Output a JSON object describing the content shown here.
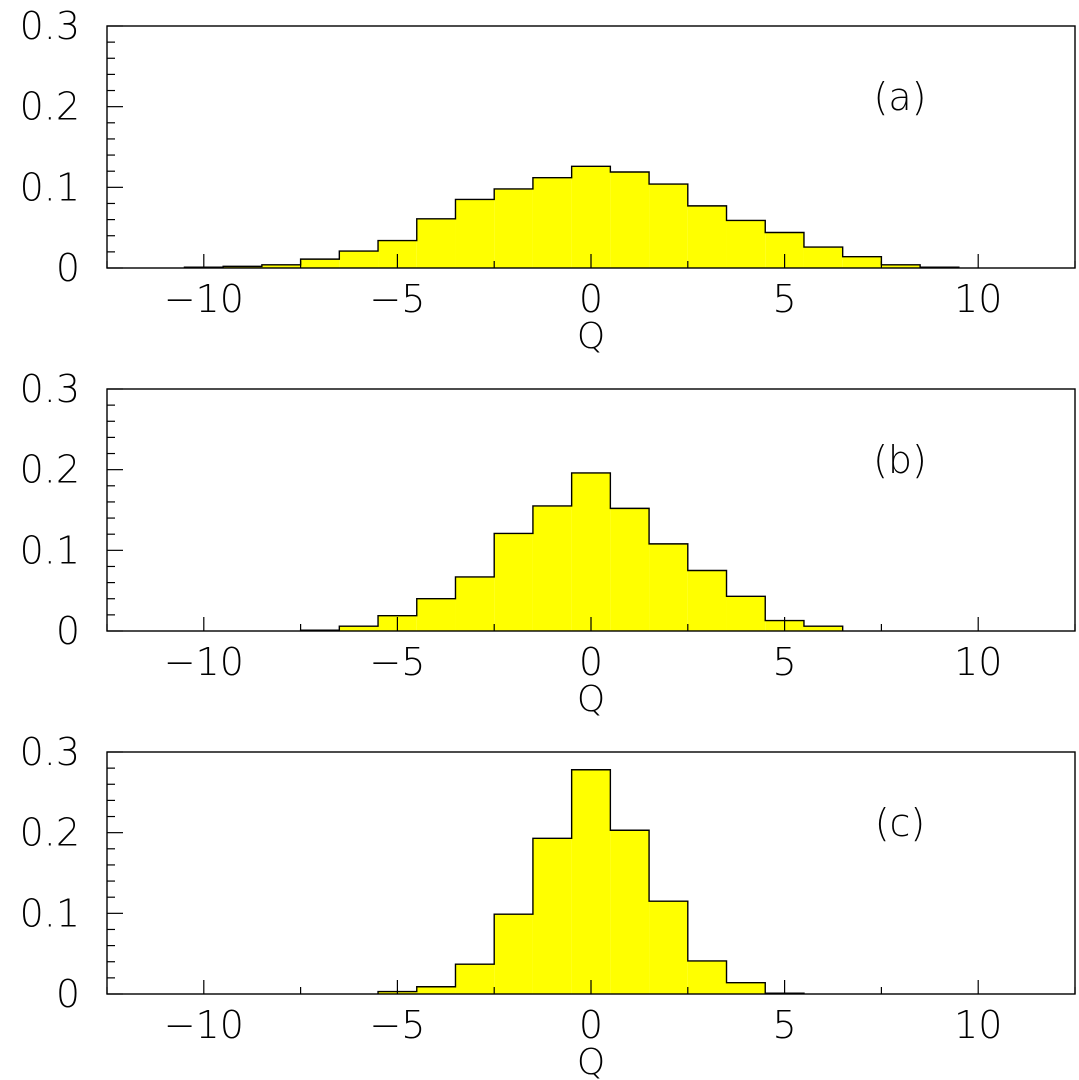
{
  "colors": {
    "fill": "#ffff00",
    "outline": "#000000",
    "background": "#ffffff"
  },
  "chart_data": [
    {
      "type": "histogram",
      "panel_label": "(a)",
      "xlabel": "Q",
      "ylabel": "",
      "xlim": [
        -12.5,
        12.5
      ],
      "ylim": [
        0,
        0.3
      ],
      "x_ticks": [
        -10,
        -5,
        0,
        5,
        10
      ],
      "x_tick_labels": [
        "−10",
        "−5",
        "0",
        "5",
        "10"
      ],
      "y_ticks": [
        0,
        0.1,
        0.2,
        0.3
      ],
      "y_tick_labels": [
        "0",
        "0.1",
        "0.2",
        "0.3"
      ],
      "grid": false,
      "bins": {
        "centers": [
          -10,
          -9,
          -8,
          -7,
          -6,
          -5,
          -4,
          -3,
          -2,
          -1,
          0,
          1,
          2,
          3,
          4,
          5,
          6,
          7,
          8,
          9
        ],
        "values": [
          0.001,
          0.002,
          0.004,
          0.011,
          0.021,
          0.034,
          0.061,
          0.085,
          0.098,
          0.112,
          0.126,
          0.119,
          0.104,
          0.077,
          0.059,
          0.044,
          0.026,
          0.014,
          0.004,
          0.001
        ]
      }
    },
    {
      "type": "histogram",
      "panel_label": "(b)",
      "xlabel": "Q",
      "ylabel": "",
      "xlim": [
        -12.5,
        12.5
      ],
      "ylim": [
        0,
        0.3
      ],
      "x_ticks": [
        -10,
        -5,
        0,
        5,
        10
      ],
      "x_tick_labels": [
        "−10",
        "−5",
        "0",
        "5",
        "10"
      ],
      "y_ticks": [
        0,
        0.1,
        0.2,
        0.3
      ],
      "y_tick_labels": [
        "0",
        "0.1",
        "0.2",
        "0.3"
      ],
      "grid": false,
      "bins": {
        "centers": [
          -7,
          -6,
          -5,
          -4,
          -3,
          -2,
          -1,
          0,
          1,
          2,
          3,
          4,
          5,
          6
        ],
        "values": [
          0.001,
          0.006,
          0.019,
          0.04,
          0.067,
          0.121,
          0.155,
          0.196,
          0.152,
          0.108,
          0.075,
          0.043,
          0.013,
          0.006
        ]
      }
    },
    {
      "type": "histogram",
      "panel_label": "(c)",
      "xlabel": "Q",
      "ylabel": "",
      "xlim": [
        -12.5,
        12.5
      ],
      "ylim": [
        0,
        0.3
      ],
      "x_ticks": [
        -10,
        -5,
        0,
        5,
        10
      ],
      "x_tick_labels": [
        "−10",
        "−5",
        "0",
        "5",
        "10"
      ],
      "y_ticks": [
        0,
        0.1,
        0.2,
        0.3
      ],
      "y_tick_labels": [
        "0",
        "0.1",
        "0.2",
        "0.3"
      ],
      "grid": false,
      "bins": {
        "centers": [
          -5,
          -4,
          -3,
          -2,
          -1,
          0,
          1,
          2,
          3,
          4,
          5
        ],
        "values": [
          0.003,
          0.009,
          0.037,
          0.099,
          0.193,
          0.278,
          0.203,
          0.115,
          0.041,
          0.014,
          0.001
        ]
      }
    }
  ]
}
